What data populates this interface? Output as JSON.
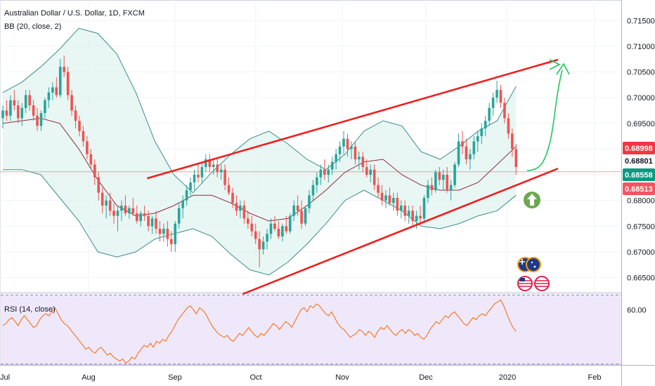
{
  "chart_data": [
    {
      "type": "candlestick",
      "title": "Australian Dollar / U.S. Dollar, 1D, FXCM",
      "indicator": "BB (20, close, 2)",
      "x_ticks": [
        "Jul",
        "Aug",
        "Sep",
        "Oct",
        "Nov",
        "Dec",
        "2020",
        "Feb"
      ],
      "y_ticks": [
        "0.71500",
        "0.71000",
        "0.70500",
        "0.70000",
        "0.69500",
        "0.69000",
        "0.68500",
        "0.68000",
        "0.67500",
        "0.67000",
        "0.66500"
      ],
      "ylim": [
        0.6622,
        0.719
      ],
      "price_tags": [
        {
          "value": "0.68998",
          "color": "#f23645"
        },
        {
          "value": "0.68801",
          "color": "#ffffff"
        },
        {
          "value": "0.68558",
          "color": "#089981"
        },
        {
          "value": "0.68513",
          "color": "#f7525f"
        }
      ],
      "last_price": 0.68558,
      "trend_lines": [
        {
          "name": "upper-channel",
          "start": [
            "2019-08-22",
            0.6843
          ],
          "end": [
            "2020-01-19",
            0.7074
          ],
          "color": "#f01e1e"
        },
        {
          "name": "lower-channel",
          "start": [
            "2019-09-27",
            0.6618
          ],
          "end": [
            "2020-01-19",
            0.6862
          ],
          "color": "#f01e1e"
        }
      ],
      "bands": {
        "upper": [
          0.701,
          0.703,
          0.706,
          0.7095,
          0.7135,
          0.7125,
          0.7085,
          0.701,
          0.6915,
          0.685,
          0.6815,
          0.6855,
          0.689,
          0.692,
          0.6935,
          0.691,
          0.688,
          0.686,
          0.689,
          0.6935,
          0.6955,
          0.6945,
          0.6895,
          0.688,
          0.6905,
          0.6935,
          0.6955,
          0.7022
        ],
        "middle": [
          0.695,
          0.6955,
          0.696,
          0.695,
          0.69,
          0.684,
          0.679,
          0.677,
          0.6775,
          0.679,
          0.681,
          0.681,
          0.6795,
          0.6775,
          0.676,
          0.6765,
          0.679,
          0.682,
          0.6855,
          0.6875,
          0.688,
          0.685,
          0.683,
          0.682,
          0.682,
          0.6835,
          0.687,
          0.6905
        ],
        "lower": [
          0.686,
          0.686,
          0.685,
          0.6805,
          0.676,
          0.67,
          0.669,
          0.67,
          0.6725,
          0.6735,
          0.6745,
          0.673,
          0.6695,
          0.6665,
          0.6655,
          0.668,
          0.6715,
          0.6755,
          0.68,
          0.682,
          0.68,
          0.678,
          0.675,
          0.6745,
          0.6755,
          0.677,
          0.678,
          0.681
        ]
      },
      "candles": [
        [
          0.696,
          0.6985,
          0.694,
          0.6975
        ],
        [
          0.6975,
          0.6995,
          0.6955,
          0.6965
        ],
        [
          0.6965,
          0.7005,
          0.6955,
          0.6995
        ],
        [
          0.6995,
          0.7015,
          0.6975,
          0.6985
        ],
        [
          0.6985,
          0.6995,
          0.695,
          0.696
        ],
        [
          0.696,
          0.699,
          0.6945,
          0.698
        ],
        [
          0.698,
          0.7015,
          0.697,
          0.7005
        ],
        [
          0.7005,
          0.7015,
          0.6975,
          0.6985
        ],
        [
          0.6985,
          0.6995,
          0.6955,
          0.6965
        ],
        [
          0.6965,
          0.698,
          0.6935,
          0.6945
        ],
        [
          0.6945,
          0.6975,
          0.6935,
          0.697
        ],
        [
          0.697,
          0.7,
          0.696,
          0.6995
        ],
        [
          0.6995,
          0.702,
          0.698,
          0.701
        ],
        [
          0.701,
          0.703,
          0.6995,
          0.702
        ],
        [
          0.702,
          0.704,
          0.7,
          0.7005
        ],
        [
          0.7005,
          0.7075,
          0.7,
          0.706
        ],
        [
          0.706,
          0.7082,
          0.704,
          0.705
        ],
        [
          0.705,
          0.706,
          0.6995,
          0.7005
        ],
        [
          0.7005,
          0.7015,
          0.6965,
          0.6975
        ],
        [
          0.6975,
          0.6985,
          0.694,
          0.6955
        ],
        [
          0.6955,
          0.6965,
          0.6925,
          0.6935
        ],
        [
          0.6935,
          0.6945,
          0.6905,
          0.6915
        ],
        [
          0.6915,
          0.6925,
          0.688,
          0.689
        ],
        [
          0.689,
          0.69,
          0.686,
          0.687
        ],
        [
          0.687,
          0.688,
          0.683,
          0.6845
        ],
        [
          0.6845,
          0.6855,
          0.68,
          0.6815
        ],
        [
          0.6815,
          0.6825,
          0.6775,
          0.679
        ],
        [
          0.679,
          0.681,
          0.6765,
          0.68
        ],
        [
          0.68,
          0.6815,
          0.677,
          0.678
        ],
        [
          0.678,
          0.6795,
          0.6755,
          0.677
        ],
        [
          0.677,
          0.679,
          0.674,
          0.678
        ],
        [
          0.678,
          0.68,
          0.676,
          0.679
        ],
        [
          0.679,
          0.681,
          0.677,
          0.6775
        ],
        [
          0.6775,
          0.679,
          0.6765,
          0.6785
        ],
        [
          0.6785,
          0.6805,
          0.677,
          0.6775
        ],
        [
          0.6775,
          0.679,
          0.6755,
          0.676
        ],
        [
          0.676,
          0.678,
          0.675,
          0.6775
        ],
        [
          0.6775,
          0.679,
          0.676,
          0.677
        ],
        [
          0.677,
          0.678,
          0.674,
          0.675
        ],
        [
          0.675,
          0.677,
          0.6735,
          0.6765
        ],
        [
          0.6765,
          0.678,
          0.6735,
          0.6745
        ],
        [
          0.6745,
          0.676,
          0.672,
          0.6735
        ],
        [
          0.6735,
          0.6755,
          0.672,
          0.6745
        ],
        [
          0.6745,
          0.676,
          0.671,
          0.6725
        ],
        [
          0.6725,
          0.674,
          0.67,
          0.6715
        ],
        [
          0.6715,
          0.676,
          0.67,
          0.6755
        ],
        [
          0.6755,
          0.6795,
          0.6745,
          0.6785
        ],
        [
          0.6785,
          0.681,
          0.6765,
          0.68
        ],
        [
          0.68,
          0.683,
          0.679,
          0.682
        ],
        [
          0.682,
          0.6845,
          0.681,
          0.6835
        ],
        [
          0.6835,
          0.686,
          0.682,
          0.685
        ],
        [
          0.685,
          0.687,
          0.6835,
          0.6845
        ],
        [
          0.6845,
          0.6875,
          0.6835,
          0.6865
        ],
        [
          0.6865,
          0.689,
          0.6855,
          0.688
        ],
        [
          0.688,
          0.689,
          0.6855,
          0.6865
        ],
        [
          0.6865,
          0.688,
          0.685,
          0.687
        ],
        [
          0.687,
          0.688,
          0.6845,
          0.6855
        ],
        [
          0.6855,
          0.687,
          0.684,
          0.686
        ],
        [
          0.686,
          0.687,
          0.682,
          0.683
        ],
        [
          0.683,
          0.6845,
          0.681,
          0.6815
        ],
        [
          0.6815,
          0.6825,
          0.6785,
          0.6795
        ],
        [
          0.6795,
          0.681,
          0.677,
          0.678
        ],
        [
          0.678,
          0.68,
          0.6765,
          0.679
        ],
        [
          0.679,
          0.68,
          0.6755,
          0.6765
        ],
        [
          0.6765,
          0.678,
          0.6745,
          0.6755
        ],
        [
          0.6755,
          0.677,
          0.673,
          0.674
        ],
        [
          0.674,
          0.6755,
          0.6715,
          0.6725
        ],
        [
          0.6725,
          0.674,
          0.667,
          0.6705
        ],
        [
          0.6705,
          0.673,
          0.6695,
          0.672
        ],
        [
          0.672,
          0.6745,
          0.6705,
          0.6735
        ],
        [
          0.6735,
          0.6765,
          0.6725,
          0.6755
        ],
        [
          0.6755,
          0.677,
          0.674,
          0.6745
        ],
        [
          0.6745,
          0.676,
          0.6725,
          0.673
        ],
        [
          0.673,
          0.6755,
          0.672,
          0.675
        ],
        [
          0.675,
          0.677,
          0.6735,
          0.674
        ],
        [
          0.674,
          0.6775,
          0.6735,
          0.677
        ],
        [
          0.677,
          0.68,
          0.676,
          0.679
        ],
        [
          0.679,
          0.681,
          0.677,
          0.678
        ],
        [
          0.678,
          0.68,
          0.6745,
          0.6755
        ],
        [
          0.6755,
          0.679,
          0.675,
          0.6785
        ],
        [
          0.6785,
          0.682,
          0.6775,
          0.681
        ],
        [
          0.681,
          0.684,
          0.68,
          0.683
        ],
        [
          0.683,
          0.6855,
          0.6815,
          0.6845
        ],
        [
          0.6845,
          0.687,
          0.683,
          0.686
        ],
        [
          0.686,
          0.688,
          0.684,
          0.685
        ],
        [
          0.685,
          0.687,
          0.6835,
          0.686
        ],
        [
          0.686,
          0.6885,
          0.685,
          0.6875
        ],
        [
          0.6875,
          0.69,
          0.686,
          0.689
        ],
        [
          0.689,
          0.6915,
          0.6875,
          0.6905
        ],
        [
          0.6905,
          0.6935,
          0.689,
          0.692
        ],
        [
          0.692,
          0.693,
          0.6885,
          0.69
        ],
        [
          0.69,
          0.6915,
          0.688,
          0.6905
        ],
        [
          0.6905,
          0.6915,
          0.687,
          0.688
        ],
        [
          0.688,
          0.6895,
          0.686,
          0.6885
        ],
        [
          0.6885,
          0.6895,
          0.6855,
          0.6865
        ],
        [
          0.6865,
          0.688,
          0.6845,
          0.685
        ],
        [
          0.685,
          0.687,
          0.6835,
          0.686
        ],
        [
          0.686,
          0.687,
          0.682,
          0.683
        ],
        [
          0.683,
          0.6845,
          0.6805,
          0.6815
        ],
        [
          0.6815,
          0.683,
          0.679,
          0.68
        ],
        [
          0.68,
          0.682,
          0.6785,
          0.681
        ],
        [
          0.681,
          0.6825,
          0.679,
          0.6795
        ],
        [
          0.6795,
          0.6815,
          0.678,
          0.6805
        ],
        [
          0.6805,
          0.6815,
          0.677,
          0.678
        ],
        [
          0.678,
          0.68,
          0.6765,
          0.679
        ],
        [
          0.679,
          0.68,
          0.676,
          0.677
        ],
        [
          0.677,
          0.679,
          0.6755,
          0.678
        ],
        [
          0.678,
          0.679,
          0.675,
          0.676
        ],
        [
          0.676,
          0.678,
          0.6745,
          0.677
        ],
        [
          0.677,
          0.679,
          0.6755,
          0.6765
        ],
        [
          0.6765,
          0.681,
          0.676,
          0.6805
        ],
        [
          0.6805,
          0.684,
          0.6795,
          0.683
        ],
        [
          0.683,
          0.6845,
          0.681,
          0.682
        ],
        [
          0.682,
          0.686,
          0.6815,
          0.6855
        ],
        [
          0.6855,
          0.6865,
          0.683,
          0.684
        ],
        [
          0.684,
          0.686,
          0.682,
          0.685
        ],
        [
          0.685,
          0.6865,
          0.6815,
          0.682
        ],
        [
          0.682,
          0.684,
          0.68,
          0.683
        ],
        [
          0.683,
          0.6875,
          0.6825,
          0.687
        ],
        [
          0.687,
          0.693,
          0.6865,
          0.6915
        ],
        [
          0.6915,
          0.6935,
          0.689,
          0.6905
        ],
        [
          0.6905,
          0.692,
          0.687,
          0.688
        ],
        [
          0.688,
          0.69,
          0.686,
          0.689
        ],
        [
          0.689,
          0.6925,
          0.688,
          0.6915
        ],
        [
          0.6915,
          0.6935,
          0.6895,
          0.6925
        ],
        [
          0.6925,
          0.695,
          0.691,
          0.694
        ],
        [
          0.694,
          0.6965,
          0.6925,
          0.6955
        ],
        [
          0.6955,
          0.699,
          0.6945,
          0.698
        ],
        [
          0.698,
          0.701,
          0.6965,
          0.7
        ],
        [
          0.7,
          0.7033,
          0.699,
          0.7015
        ],
        [
          0.7015,
          0.7025,
          0.698,
          0.699
        ],
        [
          0.699,
          0.7,
          0.695,
          0.696
        ],
        [
          0.696,
          0.697,
          0.692,
          0.693
        ],
        [
          0.693,
          0.694,
          0.6885,
          0.69
        ],
        [
          0.69,
          0.691,
          0.685,
          0.6865
        ]
      ]
    },
    {
      "type": "line",
      "title": "RSI (14, close)",
      "y_ticks": [
        "60.00"
      ],
      "ylim": [
        32,
        68
      ],
      "band": [
        30,
        70
      ],
      "series": [
        {
          "color": "#f57c2b",
          "values": [
            52,
            53,
            55,
            56,
            54,
            52,
            55,
            57,
            55,
            53,
            51,
            52,
            55,
            57,
            58,
            57,
            59,
            61,
            58,
            55,
            53,
            52,
            50,
            48,
            46,
            44,
            42,
            40,
            41,
            39,
            38,
            40,
            41,
            39,
            37,
            38,
            36,
            35,
            34,
            35,
            33,
            34,
            36,
            35,
            38,
            40,
            42,
            41,
            43,
            41,
            44,
            43,
            45,
            44,
            47,
            49,
            52,
            55,
            57,
            59,
            61,
            62,
            60,
            58,
            61,
            60,
            58,
            55,
            52,
            50,
            48,
            47,
            46,
            47,
            45,
            44,
            46,
            48,
            47,
            49,
            51,
            49,
            47,
            46,
            48,
            47,
            49,
            51,
            53,
            52,
            50,
            52,
            54,
            53,
            51,
            54,
            57,
            60,
            61,
            59,
            62,
            61,
            63,
            62,
            60,
            58,
            57,
            59,
            56,
            53,
            51,
            50,
            48,
            46,
            47,
            48,
            50,
            49,
            47,
            49,
            48,
            46,
            49,
            51,
            50,
            52,
            50,
            48,
            47,
            49,
            50,
            48,
            50,
            49,
            47,
            48,
            46,
            45,
            47,
            50,
            52,
            54,
            53,
            55,
            57,
            56,
            58,
            59,
            57,
            55,
            53,
            52,
            54,
            56,
            55,
            57,
            58,
            57,
            59,
            61,
            63,
            64,
            65,
            62,
            58,
            54,
            51,
            49
          ]
        }
      ]
    }
  ]
}
